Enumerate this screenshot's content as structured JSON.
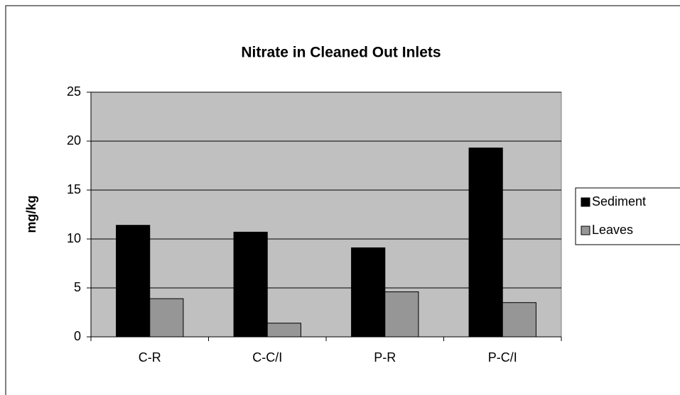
{
  "chart_data": {
    "type": "bar",
    "title": "Nitrate in Cleaned Out Inlets",
    "y_label": "mg/kg",
    "categories": [
      "C-R",
      "C-C/I",
      "P-R",
      "P-C/I"
    ],
    "series": [
      {
        "name": "Sediment",
        "color": "#000000",
        "values": [
          11.4,
          10.7,
          9.1,
          19.3
        ]
      },
      {
        "name": "Leaves",
        "color": "#969696",
        "values": [
          3.9,
          1.4,
          4.6,
          3.5
        ]
      }
    ],
    "ylim": [
      0,
      25
    ],
    "yticks": [
      0,
      5,
      10,
      15,
      20,
      25
    ],
    "grid": true,
    "legend": "right"
  }
}
